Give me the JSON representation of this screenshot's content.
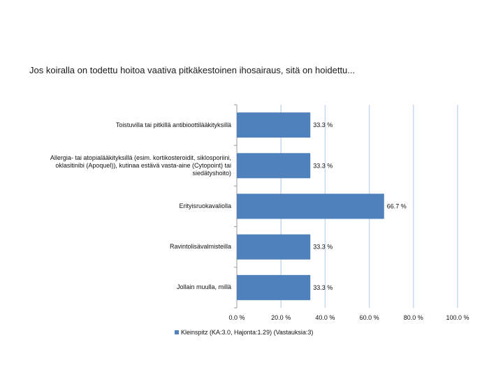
{
  "chart_data": {
    "type": "bar",
    "orientation": "horizontal",
    "title": "Jos koiralla on todettu hoitoa vaativa pitkäkestoinen ihosairaus, sitä on hoidettu...",
    "categories": [
      "Toistuvilla tai pitkillä antibioottilääkityksillä",
      "Allergia- tai atopialääkityksillä (esim. kortikosteroidit, siklosporiini, oklasitinibi (Apoquel)), kutinaa estävä vasta-aine (Cytopoint) tai siedätyshoito)",
      "Erityisruokavaliolla",
      "Ravintolisävalmisteilla",
      "Jollain muulla, millä"
    ],
    "series": [
      {
        "name": "Kleinspitz (KA:3.0, Hajonta:1.29) (Vastauksia:3)",
        "values": [
          33.3,
          33.3,
          66.7,
          33.3,
          33.3
        ],
        "value_labels": [
          "33.3 %",
          "33.3 %",
          "66.7 %",
          "33.3 %",
          "33.3 %"
        ],
        "color": "#4f81bd"
      }
    ],
    "xlim": [
      0,
      100
    ],
    "xticks": [
      0,
      20,
      40,
      60,
      80,
      100
    ],
    "xtick_labels": [
      "0.0 %",
      "20.0 %",
      "40.0 %",
      "60.0 %",
      "80.0 %",
      "100.0 %"
    ],
    "grid": true,
    "legend_position": "bottom"
  }
}
